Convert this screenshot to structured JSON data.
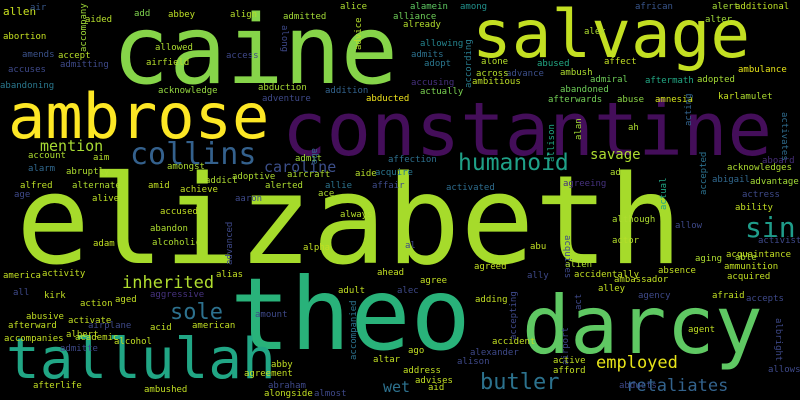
{
  "words": [
    {
      "text": "elizabeth",
      "color": "#a6db2b"
    },
    {
      "text": "constantine",
      "color": "#440e5a"
    },
    {
      "text": "caine",
      "color": "#86d449"
    },
    {
      "text": "theo",
      "color": "#29b27a"
    },
    {
      "text": "salvage",
      "color": "#c3df22"
    },
    {
      "text": "darcy",
      "color": "#5fc863"
    },
    {
      "text": "ambrose",
      "color": "#fde725"
    },
    {
      "text": "tallulah",
      "color": "#21a685"
    },
    {
      "text": "collins",
      "color": "#34618d"
    },
    {
      "text": "humanoid",
      "color": "#1fa188"
    },
    {
      "text": "sin",
      "color": "#1f9d8a"
    },
    {
      "text": "butler",
      "color": "#2c728e"
    },
    {
      "text": "sole",
      "color": "#2d718e"
    },
    {
      "text": "inherited",
      "color": "#b0dd2f"
    },
    {
      "text": "employed",
      "color": "#e7e419"
    },
    {
      "text": "retaliates",
      "color": "#33638d"
    },
    {
      "text": "mention",
      "color": "#a8db34"
    },
    {
      "text": "caroline",
      "color": "#3c4f8a"
    },
    {
      "text": "savage",
      "color": "#addc30"
    },
    {
      "text": "wet",
      "color": "#2d718e"
    },
    {
      "text": "aboard",
      "color": "#472d7b"
    },
    {
      "text": "admit",
      "color": "#a0da39"
    },
    {
      "text": "abduction",
      "color": "#a8db34"
    },
    {
      "text": "abducted",
      "color": "#f1e51d"
    },
    {
      "text": "aftermath",
      "color": "#22a884"
    },
    {
      "text": "acknowledge",
      "color": "#95d840"
    },
    {
      "text": "ambulance",
      "color": "#e7e419"
    },
    {
      "text": "admiral",
      "color": "#6ece58"
    },
    {
      "text": "actually",
      "color": "#7ad151"
    },
    {
      "text": "afterwards",
      "color": "#73d056"
    },
    {
      "text": "alert",
      "color": "#a5db36"
    },
    {
      "text": "additional",
      "color": "#bddf26"
    },
    {
      "text": "african",
      "color": "#39568c"
    },
    {
      "text": "alter",
      "color": "#a0da39"
    },
    {
      "text": "among",
      "color": "#21918c"
    },
    {
      "text": "alice",
      "color": "#addc30"
    },
    {
      "text": "alamein",
      "color": "#5ec962"
    },
    {
      "text": "alliance",
      "color": "#6ece58"
    },
    {
      "text": "admitted",
      "color": "#a2da37"
    },
    {
      "text": "abbey",
      "color": "#bddf26"
    },
    {
      "text": "align",
      "color": "#b5de2b"
    },
    {
      "text": "allen",
      "color": "#c8e020"
    },
    {
      "text": "aided",
      "color": "#b5de2b"
    },
    {
      "text": "add",
      "color": "#7fd34e"
    },
    {
      "text": "air",
      "color": "#38588c"
    },
    {
      "text": "abortion",
      "color": "#c5e021"
    },
    {
      "text": "amends",
      "color": "#3b528b"
    },
    {
      "text": "accuses",
      "color": "#3e4989"
    },
    {
      "text": "abandoning",
      "color": "#2a788e"
    },
    {
      "text": "accept",
      "color": "#b8de29"
    },
    {
      "text": "admitting",
      "color": "#3e4a89"
    },
    {
      "text": "allowed",
      "color": "#addc30"
    },
    {
      "text": "airfield",
      "color": "#b5de2b"
    },
    {
      "text": "access",
      "color": "#3f4889"
    },
    {
      "text": "allowing",
      "color": "#25848e"
    },
    {
      "text": "already",
      "color": "#b2dd2d"
    },
    {
      "text": "alex",
      "color": "#addc30"
    },
    {
      "text": "abused",
      "color": "#22a884"
    },
    {
      "text": "ambush",
      "color": "#addc30"
    },
    {
      "text": "affect",
      "color": "#c2df23"
    },
    {
      "text": "alone",
      "color": "#b5de2b"
    },
    {
      "text": "advance",
      "color": "#3c4f8a"
    },
    {
      "text": "ambitious",
      "color": "#bddf26"
    },
    {
      "text": "adopt",
      "color": "#2a778e"
    },
    {
      "text": "admits",
      "color": "#2c718e"
    },
    {
      "text": "accusing",
      "color": "#46307e"
    },
    {
      "text": "across",
      "color": "#b5de2b"
    },
    {
      "text": "abandoned",
      "color": "#6ece58"
    },
    {
      "text": "adopted",
      "color": "#a5db36"
    },
    {
      "text": "abuse",
      "color": "#8bd646"
    },
    {
      "text": "amnesia",
      "color": "#d2e21b"
    },
    {
      "text": "karl",
      "color": "#c5e021"
    },
    {
      "text": "amulet",
      "color": "#addc30"
    },
    {
      "text": "acting",
      "color": "#32648e"
    },
    {
      "text": "activates",
      "color": "#2f6c8e"
    },
    {
      "text": "ah",
      "color": "#addc30"
    },
    {
      "text": "allison",
      "color": "#21a685"
    },
    {
      "text": "alan",
      "color": "#a2da37"
    },
    {
      "text": "addition",
      "color": "#33638d"
    },
    {
      "text": "adventure",
      "color": "#3e4989"
    },
    {
      "text": "along",
      "color": "#3e4989"
    },
    {
      "text": "advice",
      "color": "#b5de2b"
    },
    {
      "text": "according",
      "color": "#287c8e"
    },
    {
      "text": "accompany",
      "color": "#a0da39"
    },
    {
      "text": "accompanied",
      "color": "#2c728e"
    },
    {
      "text": "abe",
      "color": "#31688e"
    },
    {
      "text": "aide",
      "color": "#b5de2b"
    },
    {
      "text": "acquire",
      "color": "#2a768e"
    },
    {
      "text": "allie",
      "color": "#2c738e"
    },
    {
      "text": "affair",
      "color": "#3e4c8a"
    },
    {
      "text": "affection",
      "color": "#2d708e"
    },
    {
      "text": "activated",
      "color": "#2e6d8e"
    },
    {
      "text": "agreeing",
      "color": "#46327e"
    },
    {
      "text": "ad",
      "color": "#addc30"
    },
    {
      "text": "actual",
      "color": "#21a685"
    },
    {
      "text": "accepted",
      "color": "#2c718e"
    },
    {
      "text": "abigail",
      "color": "#31688e"
    },
    {
      "text": "acknowledges",
      "color": "#addc30"
    },
    {
      "text": "advantage",
      "color": "#a2da37"
    },
    {
      "text": "actress",
      "color": "#3e4a89"
    },
    {
      "text": "ability",
      "color": "#c2df23"
    },
    {
      "text": "aim",
      "color": "#b5de2b"
    },
    {
      "text": "amongst",
      "color": "#addc30"
    },
    {
      "text": "aircraft",
      "color": "#addc30"
    },
    {
      "text": "account",
      "color": "#addc30"
    },
    {
      "text": "alarm",
      "color": "#31688e"
    },
    {
      "text": "abruptly",
      "color": "#addc30"
    },
    {
      "text": "adoptive",
      "color": "#addc30"
    },
    {
      "text": "alfred",
      "color": "#bddf26"
    },
    {
      "text": "alternate",
      "color": "#addc30"
    },
    {
      "text": "age",
      "color": "#3e4989"
    },
    {
      "text": "alive",
      "color": "#bddf26"
    },
    {
      "text": "addict",
      "color": "#addc30"
    },
    {
      "text": "alerted",
      "color": "#addc30"
    },
    {
      "text": "achieve",
      "color": "#c2df23"
    },
    {
      "text": "amid",
      "color": "#c2df23"
    },
    {
      "text": "accused",
      "color": "#c2df23"
    },
    {
      "text": "aaron",
      "color": "#3e4989"
    },
    {
      "text": "ace",
      "color": "#addc30"
    },
    {
      "text": "always",
      "color": "#b5de2b"
    },
    {
      "text": "although",
      "color": "#addc30"
    },
    {
      "text": "allow",
      "color": "#3e4989"
    },
    {
      "text": "aging",
      "color": "#addc30"
    },
    {
      "text": "able",
      "color": "#addc30"
    },
    {
      "text": "abandon",
      "color": "#addc30"
    },
    {
      "text": "alcoholic",
      "color": "#addc30"
    },
    {
      "text": "adam",
      "color": "#c2df23"
    },
    {
      "text": "advanced",
      "color": "#3e4989"
    },
    {
      "text": "alpha",
      "color": "#c2df23"
    },
    {
      "text": "al",
      "color": "#3e4989"
    },
    {
      "text": "abu",
      "color": "#c2df23"
    },
    {
      "text": "acquires",
      "color": "#3e4989"
    },
    {
      "text": "actor",
      "color": "#b5de2b"
    },
    {
      "text": "activist",
      "color": "#3e4989"
    },
    {
      "text": "acquaintance",
      "color": "#c2df23"
    },
    {
      "text": "ammunition",
      "color": "#c2df23"
    },
    {
      "text": "acquired",
      "color": "#c2df23"
    },
    {
      "text": "alias",
      "color": "#c2df23"
    },
    {
      "text": "america",
      "color": "#c2df23"
    },
    {
      "text": "activity",
      "color": "#c2df23"
    },
    {
      "text": "all",
      "color": "#3e4989"
    },
    {
      "text": "ahead",
      "color": "#c2df23"
    },
    {
      "text": "alien",
      "color": "#addc30"
    },
    {
      "text": "accidentally",
      "color": "#c2df23"
    },
    {
      "text": "absence",
      "color": "#c2df23"
    },
    {
      "text": "ambassador",
      "color": "#c2df23"
    },
    {
      "text": "adult",
      "color": "#c2df23"
    },
    {
      "text": "alec",
      "color": "#3e4989"
    },
    {
      "text": "agree",
      "color": "#c2df23"
    },
    {
      "text": "agreed",
      "color": "#c2df23"
    },
    {
      "text": "ally",
      "color": "#3e4989"
    },
    {
      "text": "agency",
      "color": "#3e4989"
    },
    {
      "text": "afraid",
      "color": "#c2df23"
    },
    {
      "text": "accepts",
      "color": "#3e4989"
    },
    {
      "text": "alley",
      "color": "#c2df23"
    },
    {
      "text": "act",
      "color": "#3e4989"
    },
    {
      "text": "kirk",
      "color": "#c2df23"
    },
    {
      "text": "aggressive",
      "color": "#46327e"
    },
    {
      "text": "action",
      "color": "#c2df23"
    },
    {
      "text": "aged",
      "color": "#c2df23"
    },
    {
      "text": "adding",
      "color": "#c2df23"
    },
    {
      "text": "abusive",
      "color": "#c2df23"
    },
    {
      "text": "afterward",
      "color": "#c2df23"
    },
    {
      "text": "activate",
      "color": "#c2df23"
    },
    {
      "text": "airplane",
      "color": "#3e4989"
    },
    {
      "text": "accompanies",
      "color": "#c2df23"
    },
    {
      "text": "albert",
      "color": "#c2df23"
    },
    {
      "text": "acid",
      "color": "#c2df23"
    },
    {
      "text": "american",
      "color": "#c2df23"
    },
    {
      "text": "amount",
      "color": "#3e4989"
    },
    {
      "text": "accepting",
      "color": "#3e4989"
    },
    {
      "text": "airport",
      "color": "#3e4989"
    },
    {
      "text": "agent",
      "color": "#c2df23"
    },
    {
      "text": "albright",
      "color": "#3e4989"
    },
    {
      "text": "academic",
      "color": "#c2df23"
    },
    {
      "text": "alcohol",
      "color": "#c2df23"
    },
    {
      "text": "accident",
      "color": "#c2df23"
    },
    {
      "text": "alexander",
      "color": "#3e4989"
    },
    {
      "text": "ago",
      "color": "#c2df23"
    },
    {
      "text": "altar",
      "color": "#c2df23"
    },
    {
      "text": "active",
      "color": "#c2df23"
    },
    {
      "text": "afford",
      "color": "#c2df23"
    },
    {
      "text": "abby",
      "color": "#c2df23"
    },
    {
      "text": "agreement",
      "color": "#c2df23"
    },
    {
      "text": "abraham",
      "color": "#3e4989"
    },
    {
      "text": "alongside",
      "color": "#c2df23"
    },
    {
      "text": "address",
      "color": "#c2df23"
    },
    {
      "text": "advises",
      "color": "#c2df23"
    },
    {
      "text": "alison",
      "color": "#3e4989"
    },
    {
      "text": "aid",
      "color": "#c2df23"
    },
    {
      "text": "abducts",
      "color": "#3e4989"
    },
    {
      "text": "allows",
      "color": "#3e4989"
    },
    {
      "text": "afterlife",
      "color": "#c2df23"
    },
    {
      "text": "ambushed",
      "color": "#c2df23"
    },
    {
      "text": "almost",
      "color": "#3e4989"
    },
    {
      "text": "admitte",
      "color": "#3e4989"
    }
  ]
}
